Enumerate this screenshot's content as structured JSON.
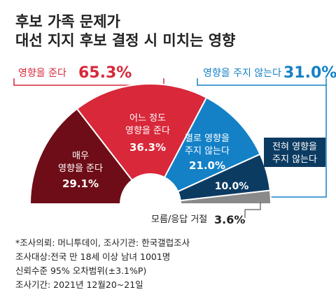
{
  "title_lines": [
    "후보 가족 문제가",
    "대선 지지 후보 결정 시 미치는 영향"
  ],
  "colors": {
    "very_strong": "#6e0d17",
    "some": "#d8283a",
    "not_much": "#1481c7",
    "none": "#0c3b62",
    "dk": "#8a8a8a",
    "bracket_red": "#d8283a",
    "bracket_blue": "#1481c7"
  },
  "groups": {
    "affect": {
      "label": "영향을 준다",
      "value": "65.3%"
    },
    "not_affect": {
      "label": "영향을 주지 않는다",
      "value": "31.0%"
    }
  },
  "chart_data": {
    "type": "pie",
    "title": "후보 가족 문제가 대선 지지 후보 결정 시 미치는 영향",
    "unit": "%",
    "categories": [
      "매우 영향을 준다",
      "어느 정도 영향을 준다",
      "별로 영향을 주지 않는다",
      "전혀 영향을 주지 않는다",
      "모름/응답 거절"
    ],
    "values": [
      29.1,
      36.3,
      21.0,
      10.0,
      3.6
    ],
    "value_labels": [
      "29.1%",
      "36.3%",
      "21.0%",
      "10.0%",
      "3.6%"
    ],
    "slice_labels": [
      [
        "매우",
        "영향을 준다"
      ],
      [
        "어느 정도",
        "영향을 준다"
      ],
      [
        "별로 영향을",
        "주지 않는다"
      ],
      [
        "전혀 영향을",
        "주지 않는다"
      ],
      [
        "모름/응답 거절"
      ]
    ],
    "group_totals": [
      {
        "label": "영향을 준다",
        "value": 65.3
      },
      {
        "label": "영향을 주지 않는다",
        "value": 31.0
      }
    ]
  },
  "notes": [
    "*조사의뢰: 머니투데이, 조사기관: 한국갤럽조사",
    "조사대상:전국 만 18세 이상 남녀 1001명",
    "신뢰수준 95% 오차범위(±3.1%P)",
    "조사기간: 2021년 12월20~21일"
  ]
}
